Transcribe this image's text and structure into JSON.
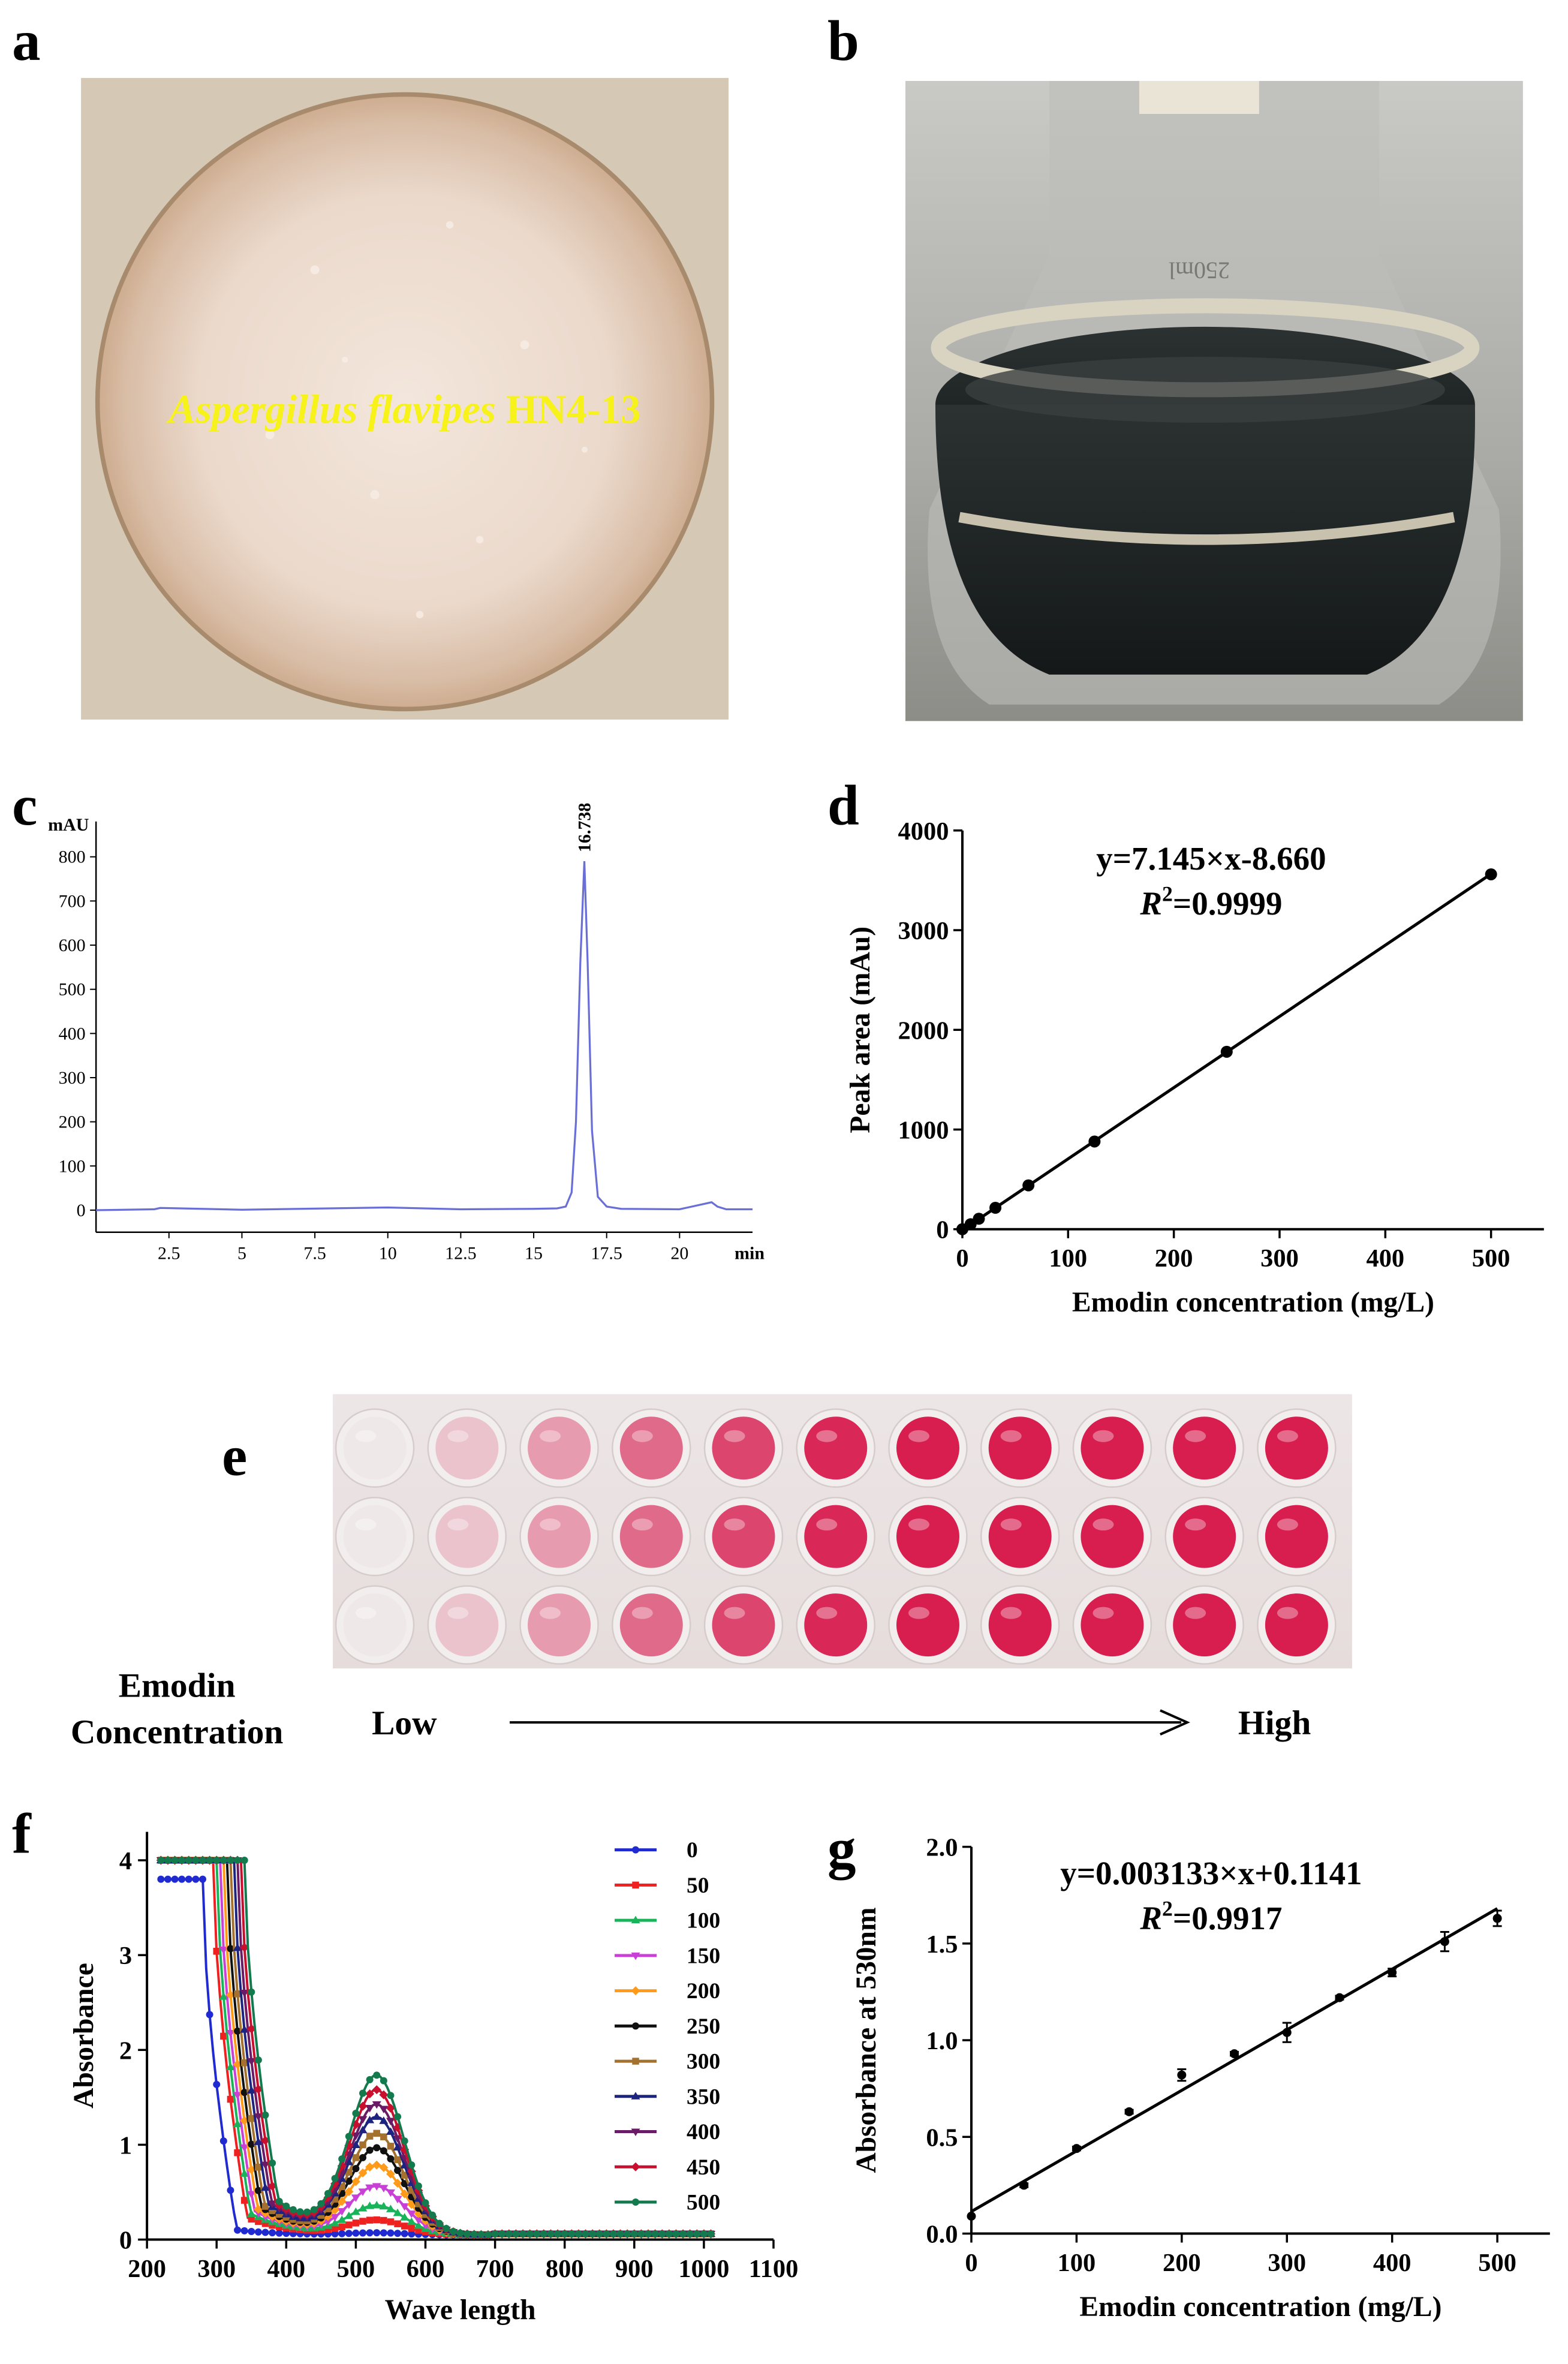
{
  "panels": {
    "a": {
      "letter": "a",
      "label_species": "Aspergillus flavipes",
      "label_strain": " HN4-13"
    },
    "b": {
      "letter": "b"
    },
    "c": {
      "letter": "c"
    },
    "d": {
      "letter": "d"
    },
    "e": {
      "letter": "e",
      "row_label_1": "Emodin",
      "row_label_2": "Concentration",
      "low": "Low",
      "high": "High"
    },
    "f": {
      "letter": "f"
    },
    "g": {
      "letter": "g"
    }
  },
  "colors": {
    "chromatogram": "#6a6fd6",
    "petri_bg": "#d8cbb8",
    "culture": "#ead9cc",
    "flask_dark": "#1e2424",
    "well_red": "#d81d4f",
    "label_yellow": "#f6f21a"
  },
  "plate_well_intensity": [
    0.0,
    0.18,
    0.38,
    0.62,
    0.8,
    0.95,
    1.0,
    1.0,
    1.0,
    1.0,
    1.0
  ],
  "chart_data": [
    {
      "panel": "c",
      "type": "line",
      "yunit": "mAU",
      "xunit": "min",
      "x_ticks": [
        "2.5",
        "5",
        "7.5",
        "10",
        "12.5",
        "15",
        "17.5",
        "20"
      ],
      "y_ticks": [
        "0",
        "100",
        "200",
        "300",
        "400",
        "500",
        "600",
        "700",
        "800"
      ],
      "xlim": [
        0,
        22.5
      ],
      "ylim": [
        -50,
        880
      ],
      "peak_label": "16.738",
      "series": [
        {
          "x": [
            0,
            2,
            2.2,
            5,
            8,
            10,
            12.5,
            15,
            15.8,
            16.1,
            16.3,
            16.45,
            16.6,
            16.738,
            16.85,
            17.0,
            17.2,
            17.5,
            18,
            20,
            21.1,
            21.3,
            21.6,
            22.5
          ],
          "y": [
            0,
            2,
            5,
            1,
            4,
            6,
            2,
            3,
            4,
            8,
            40,
            200,
            560,
            790,
            560,
            180,
            30,
            8,
            3,
            2,
            18,
            8,
            2,
            2
          ]
        }
      ]
    },
    {
      "panel": "d",
      "type": "scatter",
      "xlabel": "Emodin concentration (mg/L)",
      "ylabel": "Peak area (mAu)",
      "x_ticks": [
        "0",
        "100",
        "200",
        "300",
        "400",
        "500"
      ],
      "y_ticks": [
        "0",
        "1000",
        "2000",
        "3000",
        "4000"
      ],
      "xlim": [
        0,
        550
      ],
      "ylim": [
        0,
        4000
      ],
      "equation": "y=7.145×x-8.660",
      "r2_label": "R",
      "r2_value": "=0.9999",
      "r2_superscript": "2",
      "points": {
        "x": [
          0,
          7.8,
          15.6,
          31.25,
          62.5,
          125,
          250,
          500
        ],
        "y": [
          0,
          50,
          105,
          215,
          440,
          880,
          1780,
          3560
        ]
      },
      "fit": {
        "slope": 7.145,
        "intercept": -8.66
      }
    },
    {
      "panel": "f",
      "type": "line",
      "xlabel": "Wave length",
      "ylabel": "Absorbance",
      "x_ticks": [
        "200",
        "300",
        "400",
        "500",
        "600",
        "700",
        "800",
        "900",
        "1000",
        "1100"
      ],
      "y_ticks": [
        "0",
        "1",
        "2",
        "3",
        "4"
      ],
      "xlim": [
        200,
        1100
      ],
      "ylim": [
        0,
        4.3
      ],
      "peak_nm": 530,
      "series": [
        {
          "name": "0",
          "color": "#1f2bd0",
          "marker": "circle",
          "peak": 0.02,
          "drop_nm": 285,
          "trough": 0.05
        },
        {
          "name": "50",
          "color": "#ee2020",
          "marker": "square",
          "peak": 0.15,
          "drop_nm": 300,
          "trough": 0.18
        },
        {
          "name": "100",
          "color": "#19b45a",
          "marker": "triangle",
          "peak": 0.3,
          "drop_nm": 305,
          "trough": 0.22
        },
        {
          "name": "150",
          "color": "#c940d6",
          "marker": "triangle-down",
          "peak": 0.5,
          "drop_nm": 310,
          "trough": 0.25
        },
        {
          "name": "200",
          "color": "#ff9a1a",
          "marker": "diamond",
          "peak": 0.72,
          "drop_nm": 315,
          "trough": 0.27
        },
        {
          "name": "250",
          "color": "#111111",
          "marker": "circle",
          "peak": 0.9,
          "drop_nm": 320,
          "trough": 0.29
        },
        {
          "name": "300",
          "color": "#a5712e",
          "marker": "square",
          "peak": 1.05,
          "drop_nm": 325,
          "trough": 0.3
        },
        {
          "name": "350",
          "color": "#1d2480",
          "marker": "triangle",
          "peak": 1.22,
          "drop_nm": 330,
          "trough": 0.32
        },
        {
          "name": "400",
          "color": "#6a1b65",
          "marker": "triangle-down",
          "peak": 1.35,
          "drop_nm": 335,
          "trough": 0.33
        },
        {
          "name": "450",
          "color": "#c8102e",
          "marker": "diamond",
          "peak": 1.5,
          "drop_nm": 340,
          "trough": 0.34
        },
        {
          "name": "500",
          "color": "#137a4d",
          "marker": "circle",
          "peak": 1.65,
          "drop_nm": 345,
          "trough": 0.35
        }
      ]
    },
    {
      "panel": "g",
      "type": "scatter",
      "xlabel": "Emodin concentration (mg/L)",
      "ylabel": "Absorbance at 530nm",
      "x_ticks": [
        "0",
        "100",
        "200",
        "300",
        "400",
        "500"
      ],
      "y_ticks": [
        "0.0",
        "0.5",
        "1.0",
        "1.5",
        "2.0"
      ],
      "xlim": [
        0,
        550
      ],
      "ylim": [
        0,
        2.0
      ],
      "equation": "y=0.003133×x+0.1141",
      "r2_label": "R",
      "r2_value": "=0.9917",
      "r2_superscript": "2",
      "points": {
        "x": [
          0,
          50,
          100,
          150,
          200,
          250,
          300,
          350,
          400,
          450,
          500
        ],
        "y": [
          0.09,
          0.25,
          0.44,
          0.63,
          0.82,
          0.93,
          1.04,
          1.22,
          1.35,
          1.51,
          1.63
        ],
        "err": [
          0.0,
          0.01,
          0.01,
          0.01,
          0.03,
          0.01,
          0.05,
          0.01,
          0.02,
          0.05,
          0.04
        ]
      },
      "fit": {
        "slope": 0.003133,
        "intercept": 0.1141
      }
    }
  ]
}
